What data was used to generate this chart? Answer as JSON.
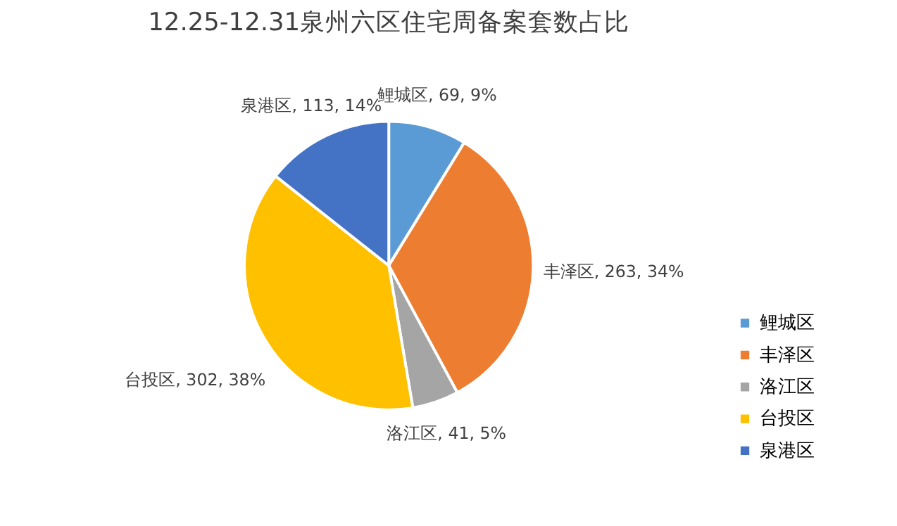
{
  "chart_data": {
    "type": "pie",
    "title": "12.25-12.31泉州六区住宅周备案套数占比",
    "categories": [
      "鲤城区",
      "丰泽区",
      "洛江区",
      "台投区",
      "泉港区"
    ],
    "values": [
      69,
      263,
      41,
      302,
      113
    ],
    "colors": [
      "#5b9bd5",
      "#ed7d31",
      "#a5a5a5",
      "#ffc000",
      "#4472c4"
    ],
    "value_labels": [
      "鲤城区, 69, 9%",
      "丰泽区, 263, 34%",
      "洛江区, 41, 5%",
      "台投区, 302, 38%",
      "泉港区, 113, 14%"
    ],
    "legend": "bottom right"
  }
}
